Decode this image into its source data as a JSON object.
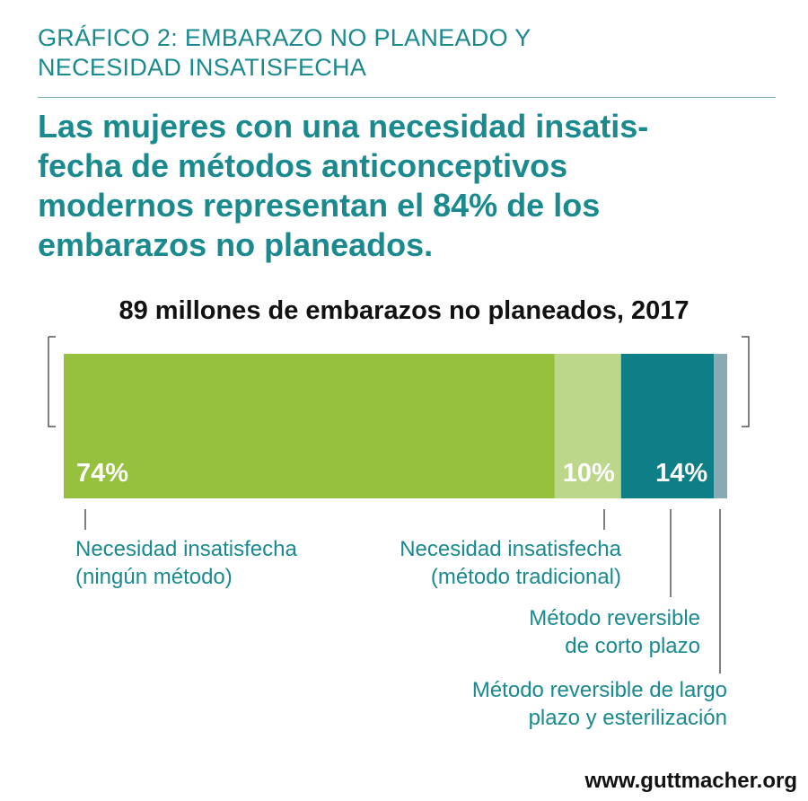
{
  "header": {
    "kicker": "GRÁFICO 2: EMBARAZO NO PLANEADO Y\nNECESIDAD INSATISFECHA",
    "headline": "Las mujeres con una necesidad insatis-\nfecha de métodos anticonceptivos\nmodernos representan el 84% de los\nembarazos no planeados."
  },
  "chart_data": {
    "type": "bar",
    "orientation": "stacked-horizontal",
    "title": "89 millones de embarazos no planeados, 2017",
    "total": 100,
    "segments": [
      {
        "label": "Necesidad insatisfecha\n(ningún método)",
        "value": 74,
        "value_label": "74%",
        "color": "#96c13f"
      },
      {
        "label": "Necesidad insatisfecha\n(método tradicional)",
        "value": 10,
        "value_label": "10%",
        "color": "#bcd68a"
      },
      {
        "label": "Método reversible\nde corto plazo",
        "value": 14,
        "value_label": "14%",
        "color": "#0e7f86"
      },
      {
        "label": "Método reversible de largo\nplazo y esterilización",
        "value": 2,
        "value_label": "",
        "color": "#89aab3"
      }
    ],
    "bracket": "—"
  },
  "footer": {
    "source": "www.guttmacher.org"
  }
}
